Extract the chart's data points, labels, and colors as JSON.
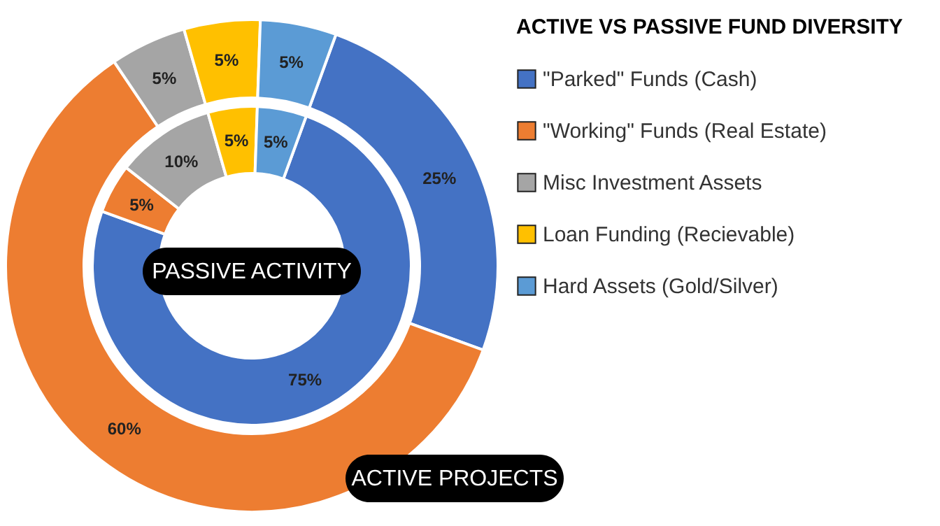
{
  "chart_data": {
    "type": "donut",
    "title": "ACTIVE VS PASSIVE FUND DIVERSITY",
    "categories": [
      "\"Parked\" Funds (Cash)",
      "\"Working\" Funds (Real Estate)",
      "Misc Investment Assets",
      "Loan Funding (Recievable)",
      "Hard Assets (Gold/Silver)"
    ],
    "colors": [
      "#4472c4",
      "#ed7d31",
      "#a5a5a5",
      "#ffc000",
      "#5b9bd5"
    ],
    "series": [
      {
        "name": "ACTIVE PROJECTS",
        "values": [
          25,
          60,
          5,
          5,
          5
        ],
        "value_labels": [
          "25%",
          "60%",
          "5%",
          "5%",
          "5%"
        ]
      },
      {
        "name": "PASSIVE ACTIVITY",
        "values": [
          75,
          5,
          10,
          5,
          5
        ],
        "value_labels": [
          "75%",
          "5%",
          "10%",
          "5%",
          "5%"
        ]
      }
    ],
    "legend": "right"
  }
}
